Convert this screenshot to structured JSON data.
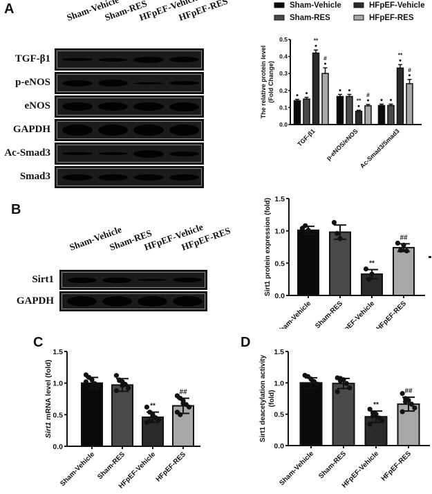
{
  "panels": {
    "A": {
      "letter": "A",
      "lanes": [
        "Sham-Vehicle",
        "Sham-RES",
        "HFpEF-Vehicle",
        "HFpEF-RES"
      ],
      "blots": [
        {
          "label": "TGF-β1",
          "band_heights": [
            4,
            5,
            9,
            8
          ]
        },
        {
          "label": "p-eNOS",
          "band_heights": [
            9,
            10,
            3,
            6
          ]
        },
        {
          "label": "eNOS",
          "band_heights": [
            12,
            12,
            12,
            13
          ]
        },
        {
          "label": "GAPDH",
          "band_heights": [
            16,
            16,
            16,
            16
          ]
        },
        {
          "label": "Ac-Smad3",
          "band_heights": [
            4,
            4,
            11,
            7
          ]
        },
        {
          "label": "Smad3",
          "band_heights": [
            9,
            9,
            9,
            9
          ]
        }
      ]
    },
    "B": {
      "letter": "B",
      "lanes": [
        "Sham-Vehicle",
        "Sham-RES",
        "HFpEF-Vehicle",
        "HFpEF-RES"
      ],
      "blots": [
        {
          "label": "Sirt1",
          "band_heights": [
            8,
            8,
            3,
            7
          ]
        },
        {
          "label": "GAPDH",
          "band_heights": [
            15,
            15,
            15,
            15
          ]
        }
      ]
    },
    "C": {
      "letter": "C"
    },
    "D": {
      "letter": "D"
    }
  },
  "colors": {
    "sham_vehicle": "#0a0a0a",
    "sham_res": "#4a4a4a",
    "hfpef_vehicle": "#2a2a2a",
    "hfpef_res": "#a8a8a8"
  },
  "chart_data": [
    {
      "id": "A",
      "type": "bar",
      "title": "",
      "xlabel": "",
      "ylabel": "The relative protein level (Fold Change)",
      "ylim": [
        0,
        0.5
      ],
      "yticks": [
        "0.0",
        "0.1",
        "0.2",
        "0.3",
        "0.4",
        "0.5"
      ],
      "categories": [
        "TGF-β1",
        "p-eNOS/eNOS",
        "Ac-Smad3/Smad3"
      ],
      "legend": [
        "Sham-Vehicle",
        "Sham-RES",
        "HFpEF-Vehicle",
        "HFpEF-RES"
      ],
      "legend_position": "top",
      "series": [
        {
          "name": "Sham-Vehicle",
          "values": [
            0.14,
            0.165,
            0.112
          ],
          "errors": [
            0.008,
            0.012,
            0.008
          ],
          "annotations": [
            "",
            "",
            ""
          ]
        },
        {
          "name": "Sham-RES",
          "values": [
            0.15,
            0.165,
            0.112
          ],
          "errors": [
            0.01,
            0.012,
            0.008
          ],
          "annotations": [
            "",
            "",
            ""
          ]
        },
        {
          "name": "HFpEF-Vehicle",
          "values": [
            0.42,
            0.078,
            0.332
          ],
          "errors": [
            0.018,
            0.006,
            0.02
          ],
          "annotations": [
            "**",
            "**",
            "**"
          ]
        },
        {
          "name": "HFpEF-RES",
          "values": [
            0.3,
            0.11,
            0.24
          ],
          "errors": [
            0.033,
            0.008,
            0.025
          ],
          "annotations": [
            "#",
            "#",
            "#"
          ]
        }
      ]
    },
    {
      "id": "B",
      "type": "bar",
      "title": "",
      "xlabel": "",
      "ylabel": "Sirt1 protein expression (fold)",
      "ylim": [
        0,
        1.5
      ],
      "yticks": [
        "0.0",
        "0.5",
        "1.0",
        "1.5"
      ],
      "categories": [
        "Sham-Vehicle",
        "Sham-RES",
        "HFpEF-Vehicle",
        "HFpEF-RES"
      ],
      "values": [
        1.01,
        0.98,
        0.33,
        0.74
      ],
      "errors": [
        0.06,
        0.11,
        0.07,
        0.06
      ],
      "annotations": [
        "",
        "",
        "**",
        "##"
      ],
      "points": [
        [
          1.04,
          1.08,
          1.01
        ],
        [
          1.13,
          0.96,
          0.88
        ],
        [
          0.41,
          0.25,
          0.33
        ],
        [
          0.81,
          0.7,
          0.78,
          0.69
        ]
      ]
    },
    {
      "id": "C",
      "type": "bar",
      "title": "",
      "xlabel": "",
      "ylabel": "Sirt1 mRNA level (fold)",
      "ylabel_italic_part": "Sirt1",
      "ylabel_rest": " mRNA level (fold)",
      "ylim": [
        0,
        1.5
      ],
      "yticks": [
        "0.0",
        "0.5",
        "1.0",
        "1.5"
      ],
      "categories": [
        "Sham-Vehicle",
        "Sham-RES",
        "HFpEF-Vehicle",
        "HFpEF-RES"
      ],
      "values": [
        1.0,
        0.97,
        0.46,
        0.64
      ],
      "errors": [
        0.09,
        0.1,
        0.08,
        0.12
      ],
      "annotations": [
        "",
        "",
        "**",
        "##"
      ],
      "points": [
        [
          1.13,
          1.09,
          1.05,
          0.99,
          0.95,
          1.02
        ],
        [
          1.12,
          1.05,
          1.02,
          0.98,
          0.92,
          0.88,
          1.04,
          0.96
        ],
        [
          0.62,
          0.54,
          0.5,
          0.45,
          0.42,
          0.38,
          0.4,
          0.48
        ],
        [
          0.8,
          0.76,
          0.72,
          0.66,
          0.62,
          0.54,
          0.5,
          0.68
        ]
      ]
    },
    {
      "id": "D",
      "type": "bar",
      "title": "",
      "xlabel": "",
      "ylabel": "Sirt1 deacetylation activity (fold)",
      "ylim": [
        0,
        1.5
      ],
      "yticks": [
        "0.0",
        "0.5",
        "1.0",
        "1.5"
      ],
      "categories": [
        "Sham-Vehicle",
        "Sham-RES",
        "HFpEF-Vehicle",
        "HFpEF-RES"
      ],
      "values": [
        1.0,
        0.99,
        0.46,
        0.66
      ],
      "errors": [
        0.08,
        0.08,
        0.09,
        0.11
      ],
      "annotations": [
        "",
        "",
        "**",
        "##"
      ],
      "points": [
        [
          1.12,
          1.1,
          1.06,
          1.02,
          0.98
        ],
        [
          1.08,
          1.07,
          1.05,
          0.99,
          0.92,
          0.86,
          1.03
        ],
        [
          0.58,
          0.52,
          0.5,
          0.44,
          0.4,
          0.34,
          0.47
        ],
        [
          0.83,
          0.75,
          0.72,
          0.66,
          0.6,
          0.54,
          0.7
        ]
      ]
    }
  ]
}
